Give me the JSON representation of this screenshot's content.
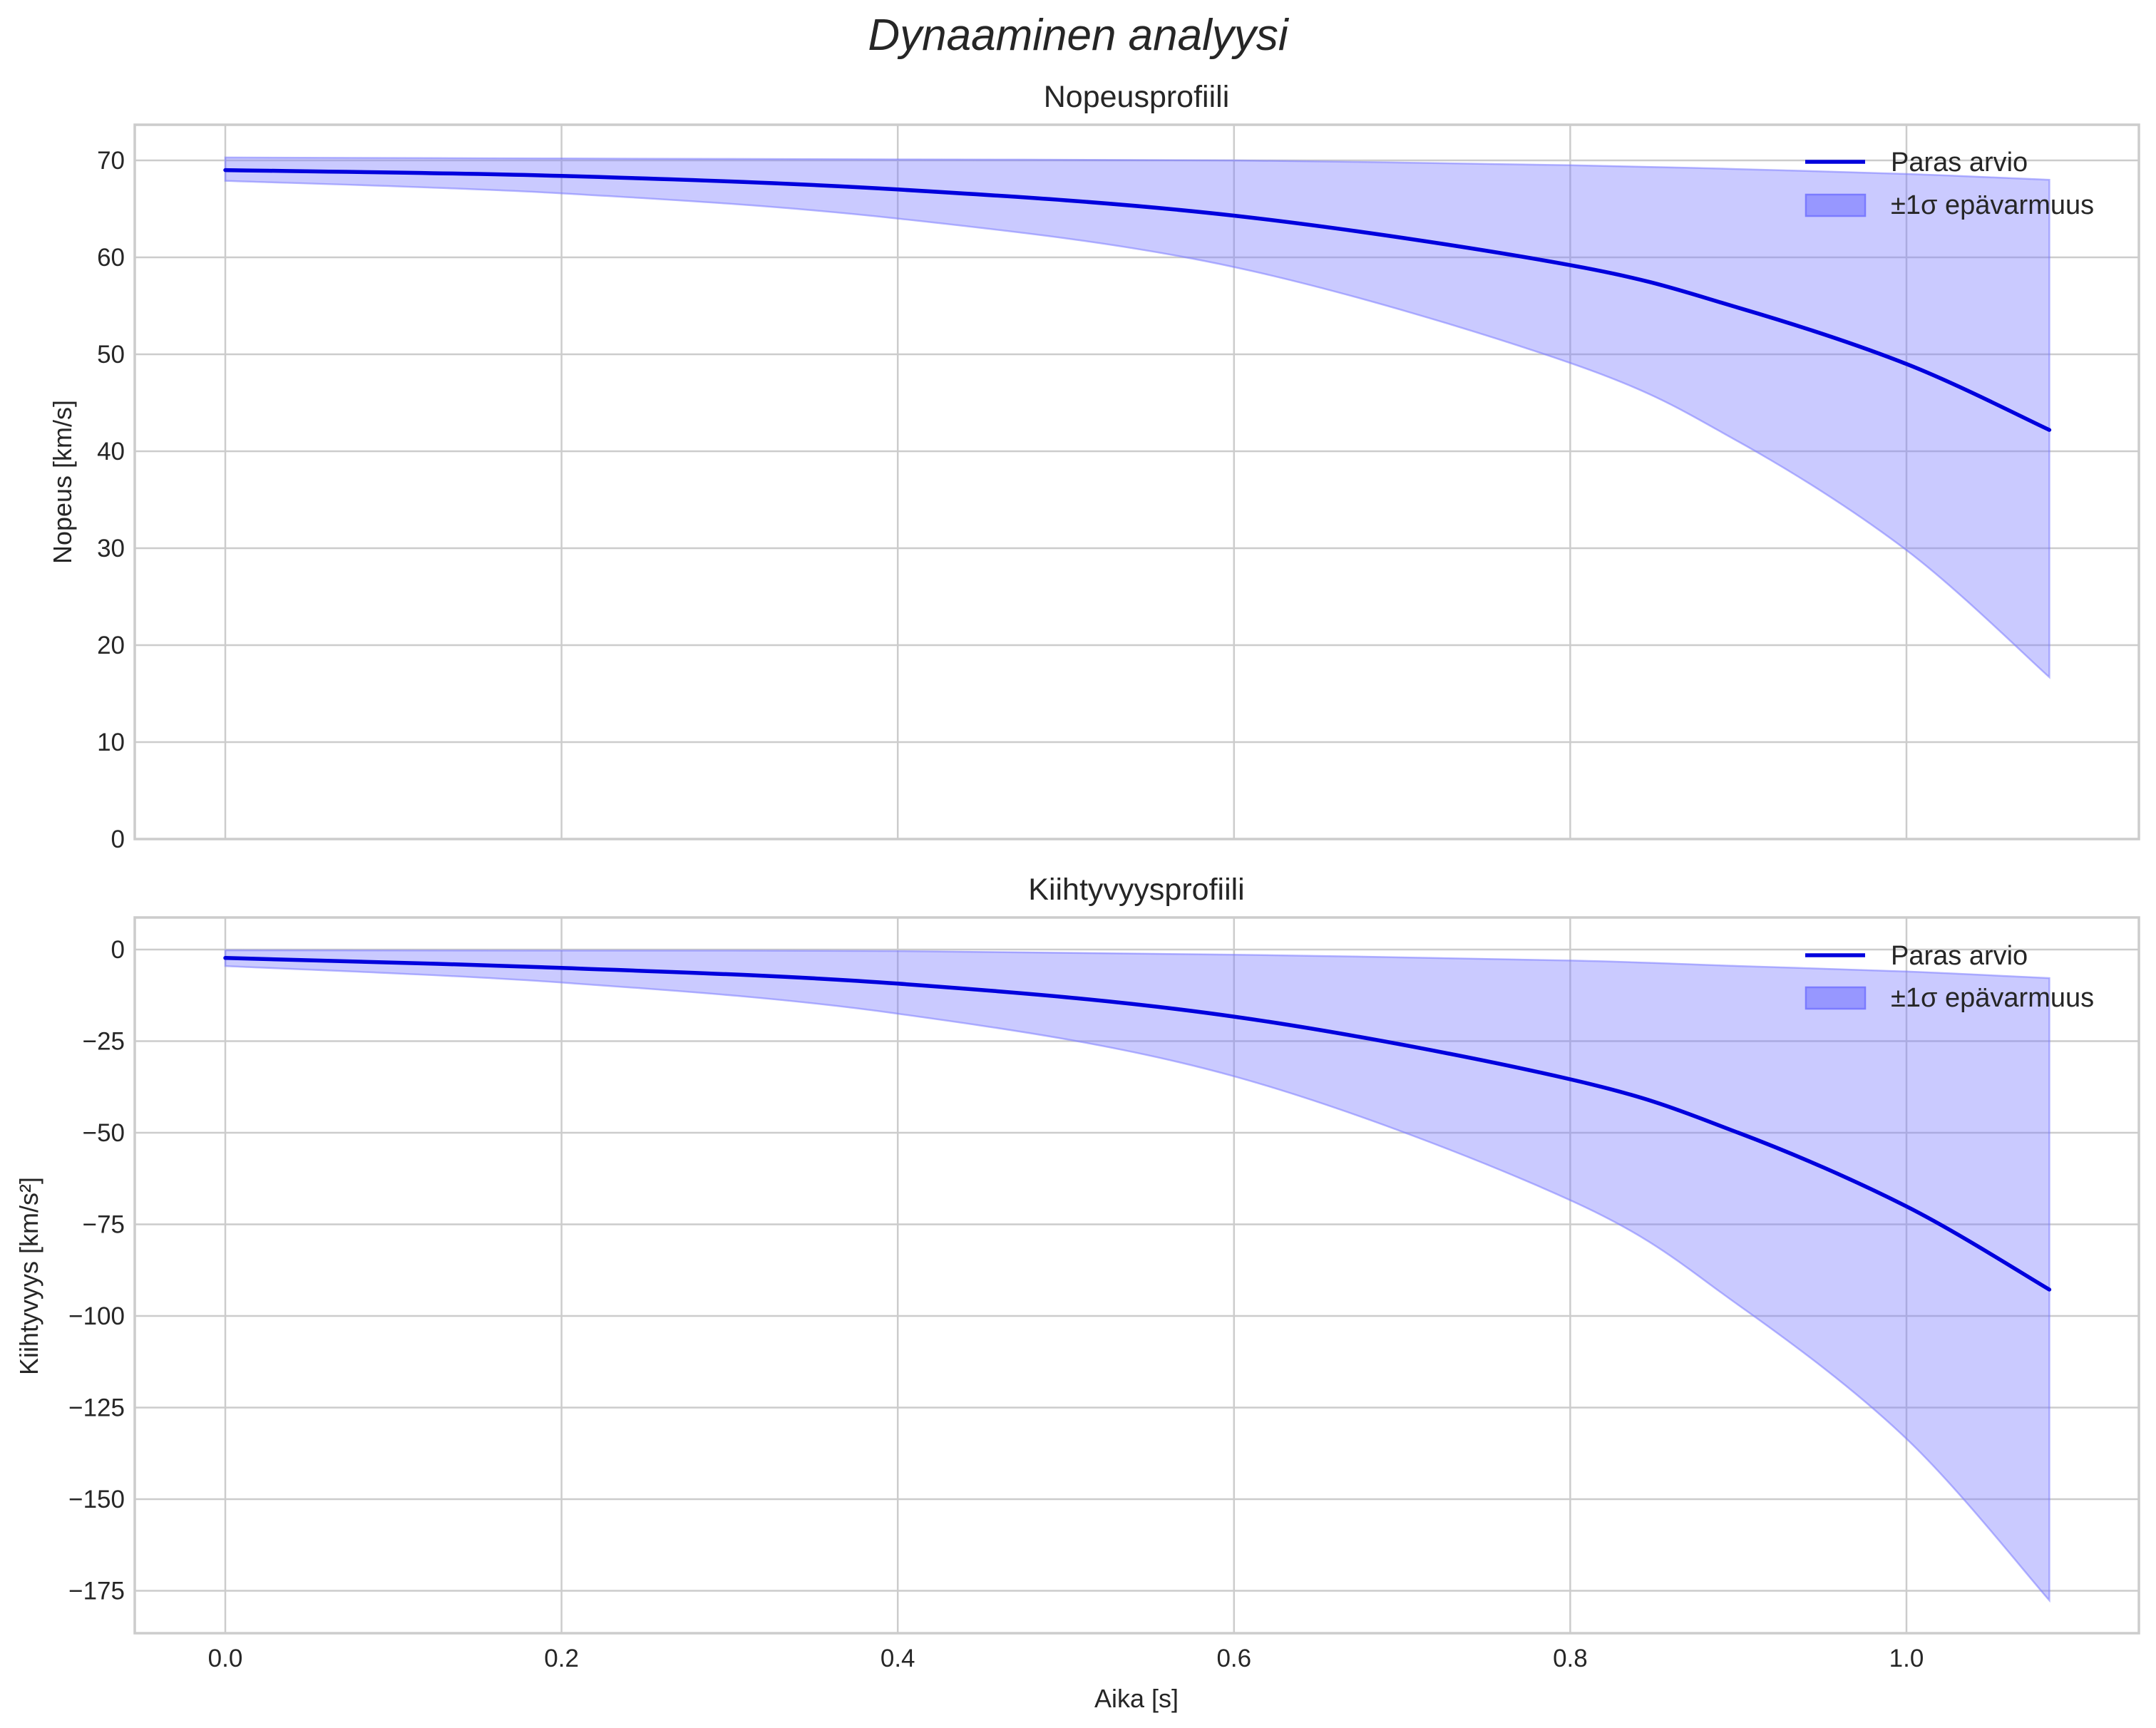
{
  "figure": {
    "suptitle": "Dynaaminen analyysi",
    "xlabel": "Aika [s]",
    "x_ticks": [
      "0.0",
      "0.2",
      "0.4",
      "0.6",
      "0.8",
      "1.0"
    ],
    "colors": {
      "line": "#0000dd",
      "band": "#7b7bff",
      "band_alpha": 0.4,
      "grid": "#cccccc",
      "text": "#262626"
    }
  },
  "legend": {
    "line_label": "Paras arvio",
    "band_label": "±1σ epävarmuus"
  },
  "top": {
    "title": "Nopeusprofiili",
    "ylabel": "Nopeus [km/s]",
    "y_ticks": [
      "0",
      "10",
      "20",
      "30",
      "40",
      "50",
      "60",
      "70"
    ]
  },
  "bottom": {
    "title": "Kiihtyvyysprofiili",
    "ylabel": "Kiihtyvyys [km/s²]",
    "y_ticks": [
      "0",
      "−25",
      "−50",
      "−75",
      "−100",
      "−125",
      "−150",
      "−175"
    ]
  },
  "chart_data": [
    {
      "type": "line",
      "title": "Nopeusprofiili",
      "xlabel": "",
      "ylabel": "Nopeus [km/s]",
      "xlim": [
        -0.054,
        1.138
      ],
      "ylim": [
        0,
        73.7
      ],
      "grid": true,
      "legend_position": "upper right",
      "x": [
        0.0,
        0.2,
        0.4,
        0.6,
        0.8,
        0.9,
        1.0,
        1.085
      ],
      "series": [
        {
          "name": "Paras arvio",
          "values": [
            69.0,
            68.4,
            67.0,
            64.3,
            59.2,
            54.8,
            49.0,
            42.2
          ]
        },
        {
          "name": "±1σ epävarmuus (upper)",
          "values": [
            70.3,
            70.2,
            70.1,
            70.0,
            69.5,
            69.1,
            68.6,
            68.0
          ]
        },
        {
          "name": "±1σ epävarmuus (lower)",
          "values": [
            67.9,
            66.6,
            64.0,
            59.0,
            49.1,
            41.0,
            29.8,
            16.7
          ]
        }
      ]
    },
    {
      "type": "line",
      "title": "Kiihtyvyysprofiili",
      "xlabel": "Aika [s]",
      "ylabel": "Kiihtyvyys [km/s²]",
      "xlim": [
        -0.054,
        1.138
      ],
      "ylim": [
        -186.5,
        8.8
      ],
      "grid": true,
      "legend_position": "upper right",
      "x": [
        0.0,
        0.2,
        0.4,
        0.6,
        0.8,
        0.9,
        1.0,
        1.085
      ],
      "series": [
        {
          "name": "Paras arvio",
          "values": [
            -2.3,
            -5.0,
            -9.3,
            -18.3,
            -35.4,
            -50.0,
            -70.1,
            -92.8
          ]
        },
        {
          "name": "±1σ epävarmuus (upper)",
          "values": [
            -0.2,
            -0.3,
            -0.4,
            -1.4,
            -3.0,
            -4.5,
            -6.0,
            -7.8
          ]
        },
        {
          "name": "±1σ epävarmuus (lower)",
          "values": [
            -4.5,
            -9.0,
            -17.5,
            -34.6,
            -68.4,
            -97.0,
            -133.5,
            -177.6
          ]
        }
      ]
    }
  ]
}
